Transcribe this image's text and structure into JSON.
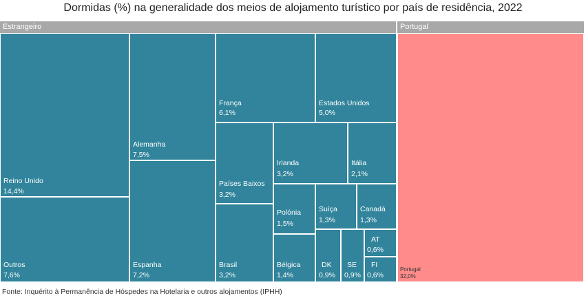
{
  "title": "Dormidas (%) na generalidade dos meios de alojamento turístico por país de residência, 2022",
  "source": "Fonte: Inquérito à Permanência de Hóspedes na Hotelaria e outros alojamentos (IPHH)",
  "colors": {
    "foreign": "#31849b",
    "domestic": "#ff8b8b",
    "header": "#a8a8a8"
  },
  "chart_data": {
    "type": "treemap",
    "title": "Dormidas (%) na generalidade dos meios de alojamento turístico por país de residência, 2022",
    "groups": [
      {
        "name": "Estrangeiro",
        "color": "#31849b",
        "items": [
          {
            "name": "Reino Unido",
            "label": "14,4%",
            "value": 14.4
          },
          {
            "name": "Outros",
            "label": "7,6%",
            "value": 7.6
          },
          {
            "name": "Alemanha",
            "label": "7,5%",
            "value": 7.5
          },
          {
            "name": "Espanha",
            "label": "7,2%",
            "value": 7.2
          },
          {
            "name": "França",
            "label": "6,1%",
            "value": 6.1
          },
          {
            "name": "Estados Unidos",
            "label": "5,0%",
            "value": 5.0
          },
          {
            "name": "Países Baixos",
            "label": "3,2%",
            "value": 3.2
          },
          {
            "name": "Brasil",
            "label": "3,2%",
            "value": 3.2
          },
          {
            "name": "Irlanda",
            "label": "3,2%",
            "value": 3.2
          },
          {
            "name": "Itália",
            "label": "2,1%",
            "value": 2.1
          },
          {
            "name": "Polónia",
            "label": "1,5%",
            "value": 1.5
          },
          {
            "name": "Suíça",
            "label": "1,3%",
            "value": 1.3
          },
          {
            "name": "Canadá",
            "label": "1,3%",
            "value": 1.3
          },
          {
            "name": "Bélgica",
            "label": "1,4%",
            "value": 1.4
          },
          {
            "name": "DK",
            "label": "0,9%",
            "value": 0.9
          },
          {
            "name": "SE",
            "label": "0,9%",
            "value": 0.9
          },
          {
            "name": "AT",
            "label": "0,6%",
            "value": 0.6
          },
          {
            "name": "FI",
            "label": "0,6%",
            "value": 0.6
          }
        ]
      },
      {
        "name": "Portugal",
        "color": "#ff8b8b",
        "items": [
          {
            "name": "Portugal",
            "label": "32,0%",
            "value": 32.0
          }
        ]
      }
    ]
  }
}
